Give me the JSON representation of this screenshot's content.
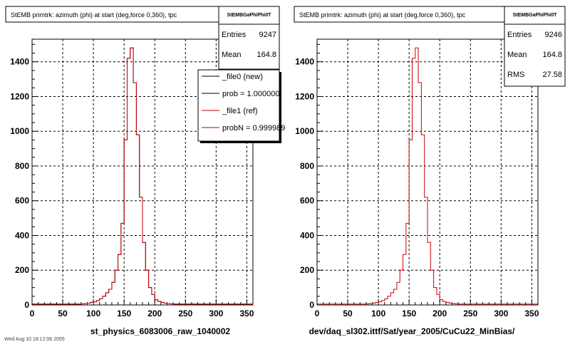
{
  "footer_stamp": "Wed Aug 10 18:12:08 2005",
  "colors": {
    "new": "#000000",
    "ref": "#cc0000",
    "grid": "#000000",
    "frame": "#000000",
    "background": "#ffffff"
  },
  "chart_data": [
    {
      "type": "line",
      "title": "StEMB primtrk: azimuth (phi) at start (deg,force 0,360), tpc",
      "xlabel": "st_physics_6083006_raw_1040002",
      "ylabel": "",
      "xlim": [
        0,
        360
      ],
      "ylim": [
        0,
        1530
      ],
      "xticks": [
        0,
        50,
        100,
        150,
        200,
        250,
        300,
        350
      ],
      "yticks": [
        0,
        200,
        400,
        600,
        800,
        1000,
        1200,
        1400
      ],
      "grid": true,
      "stats": {
        "name": "StEMBGaPhiPhi0T",
        "entries_label": "Entries",
        "entries": "9247",
        "mean_label": "Mean",
        "mean": "164.8"
      },
      "legend": {
        "placement": "top-right",
        "entries": [
          "_file0 (new)",
          "prob = 1.000000",
          "_file1 (ref)",
          "probN = 0.999989"
        ]
      },
      "bin_width": 5,
      "series": [
        {
          "name": "_file0 (new)",
          "values": [
            5,
            5,
            5,
            5,
            5,
            5,
            5,
            5,
            5,
            5,
            5,
            5,
            5,
            5,
            5,
            5,
            6,
            8,
            10,
            15,
            18,
            25,
            35,
            50,
            70,
            90,
            130,
            200,
            290,
            470,
            950,
            1420,
            1480,
            1280,
            980,
            620,
            360,
            200,
            100,
            60,
            30,
            20,
            15,
            10,
            8,
            6,
            5,
            5,
            5,
            5,
            5,
            5,
            5,
            5,
            5,
            5,
            5,
            5,
            5,
            5,
            5,
            5,
            5,
            5,
            5,
            5,
            5,
            5,
            5,
            5,
            5,
            5
          ]
        },
        {
          "name": "_file1 (ref)",
          "values": [
            5,
            5,
            5,
            5,
            5,
            5,
            5,
            5,
            5,
            5,
            5,
            5,
            5,
            5,
            5,
            5,
            6,
            8,
            10,
            15,
            18,
            25,
            35,
            50,
            70,
            90,
            130,
            200,
            290,
            470,
            950,
            1420,
            1480,
            1280,
            980,
            620,
            360,
            200,
            100,
            60,
            30,
            20,
            15,
            10,
            8,
            6,
            5,
            5,
            5,
            5,
            5,
            5,
            5,
            5,
            5,
            5,
            5,
            5,
            5,
            5,
            5,
            5,
            5,
            5,
            5,
            5,
            5,
            5,
            5,
            5,
            5,
            5
          ]
        }
      ]
    },
    {
      "type": "line",
      "title": "StEMB primtrk: azimuth (phi) at start (deg,force 0,360), tpc",
      "xlabel": "dev/daq_sl302.ittf/Sat/year_2005/CuCu22_MinBias/",
      "ylabel": "",
      "xlim": [
        0,
        360
      ],
      "ylim": [
        0,
        1530
      ],
      "xticks": [
        0,
        50,
        100,
        150,
        200,
        250,
        300,
        350
      ],
      "yticks": [
        0,
        200,
        400,
        600,
        800,
        1000,
        1200,
        1400
      ],
      "grid": true,
      "stats": {
        "name": "StEMBGaPhiPhi0T",
        "entries_label": "Entries",
        "entries": "9246",
        "mean_label": "Mean",
        "mean": "164.8",
        "rms_label": "RMS",
        "rms": "27.58"
      },
      "bin_width": 5,
      "series": [
        {
          "name": "",
          "values": [
            5,
            5,
            5,
            5,
            5,
            5,
            5,
            5,
            5,
            5,
            5,
            5,
            5,
            5,
            5,
            5,
            6,
            8,
            10,
            15,
            18,
            25,
            35,
            50,
            70,
            90,
            130,
            200,
            290,
            470,
            950,
            1420,
            1480,
            1280,
            980,
            620,
            360,
            200,
            100,
            60,
            30,
            20,
            15,
            10,
            8,
            6,
            5,
            5,
            5,
            5,
            5,
            5,
            5,
            5,
            5,
            5,
            5,
            5,
            5,
            5,
            5,
            5,
            5,
            5,
            5,
            5,
            5,
            5,
            5,
            5,
            5,
            5
          ]
        }
      ]
    }
  ]
}
